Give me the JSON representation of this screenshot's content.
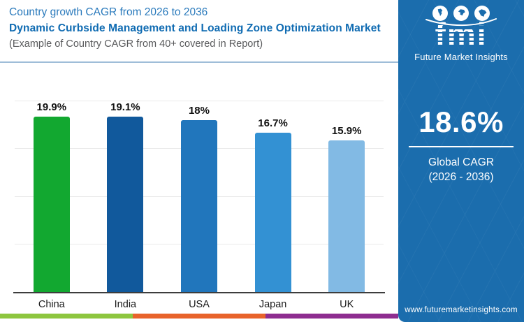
{
  "header": {
    "line1": "Country growth CAGR from 2026 to 2036",
    "line2": "Dynamic Curbside Management and Loading Zone Optimization Market",
    "line3": "(Example of Country CAGR from 40+ covered in Report)"
  },
  "chart_data": {
    "type": "bar",
    "title": "Country growth CAGR from 2026 to 2036",
    "categories": [
      "China",
      "India",
      "USA",
      "Japan",
      "UK"
    ],
    "values": [
      19.9,
      19.1,
      18.0,
      16.7,
      15.9
    ],
    "labels": [
      "19.9%",
      "19.1%",
      "18%",
      "16.7%",
      "15.9%"
    ],
    "bar_colors": [
      "#12a830",
      "#11599c",
      "#2176bc",
      "#3391d3",
      "#82bae4"
    ],
    "ylim": [
      0,
      20
    ],
    "gridlines_at": [
      5,
      10,
      15,
      20
    ],
    "xlabel": "",
    "ylabel": "",
    "legend": "none",
    "grid": "horizontal-faint"
  },
  "sidebar": {
    "background_color": "#1b6dad",
    "logo": {
      "text": "fmi",
      "subtext": "Future Market Insights",
      "icons": [
        "americas-globe-icon",
        "europe-globe-icon",
        "asia-globe-icon"
      ]
    },
    "stat_value": "18.6%",
    "stat_label_line1": "Global CAGR",
    "stat_label_line2": "(2026 - 2036)",
    "website": "www.futuremarketinsights.com"
  },
  "footer_stripe_colors": [
    "#8dc63f",
    "#e8632b",
    "#8e2d90"
  ]
}
